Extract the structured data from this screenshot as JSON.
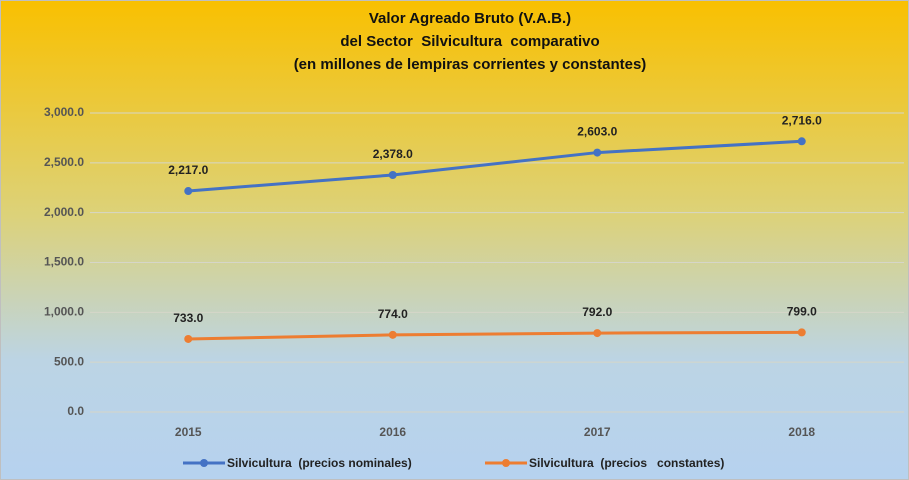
{
  "chart_data": {
    "type": "line",
    "title": [
      "Valor Agreado Bruto (V.A.B.)",
      "del Sector  Silvicultura  comparativo",
      "(en millones de lempiras corrientes y constantes)"
    ],
    "categories": [
      "2015",
      "2016",
      "2017",
      "2018"
    ],
    "series": [
      {
        "name": "Silvicultura  (precios nominales)",
        "color": "#4472c4",
        "values": [
          2217,
          2378,
          2603,
          2716
        ],
        "value_labels": [
          "2,217.0",
          "2,378.0",
          "2,603.0",
          "2,716.0"
        ]
      },
      {
        "name": "Silvicultura  (precios   constantes)",
        "color": "#ed7d31",
        "values": [
          733,
          774,
          792,
          799
        ],
        "value_labels": [
          "733.0",
          "774.0",
          "792.0",
          "799.0"
        ]
      }
    ],
    "ylim": [
      0,
      3000
    ],
    "yticks": [
      {
        "value": 0,
        "label": "0.0"
      },
      {
        "value": 500,
        "label": "500.0"
      },
      {
        "value": 1000,
        "label": "1,000.0"
      },
      {
        "value": 1500,
        "label": "1,500.0"
      },
      {
        "value": 2000,
        "label": "2,000.0"
      },
      {
        "value": 2500,
        "label": "2,500.0"
      },
      {
        "value": 3000,
        "label": "3,000.0"
      }
    ],
    "grid": true,
    "legend": "bottom"
  }
}
